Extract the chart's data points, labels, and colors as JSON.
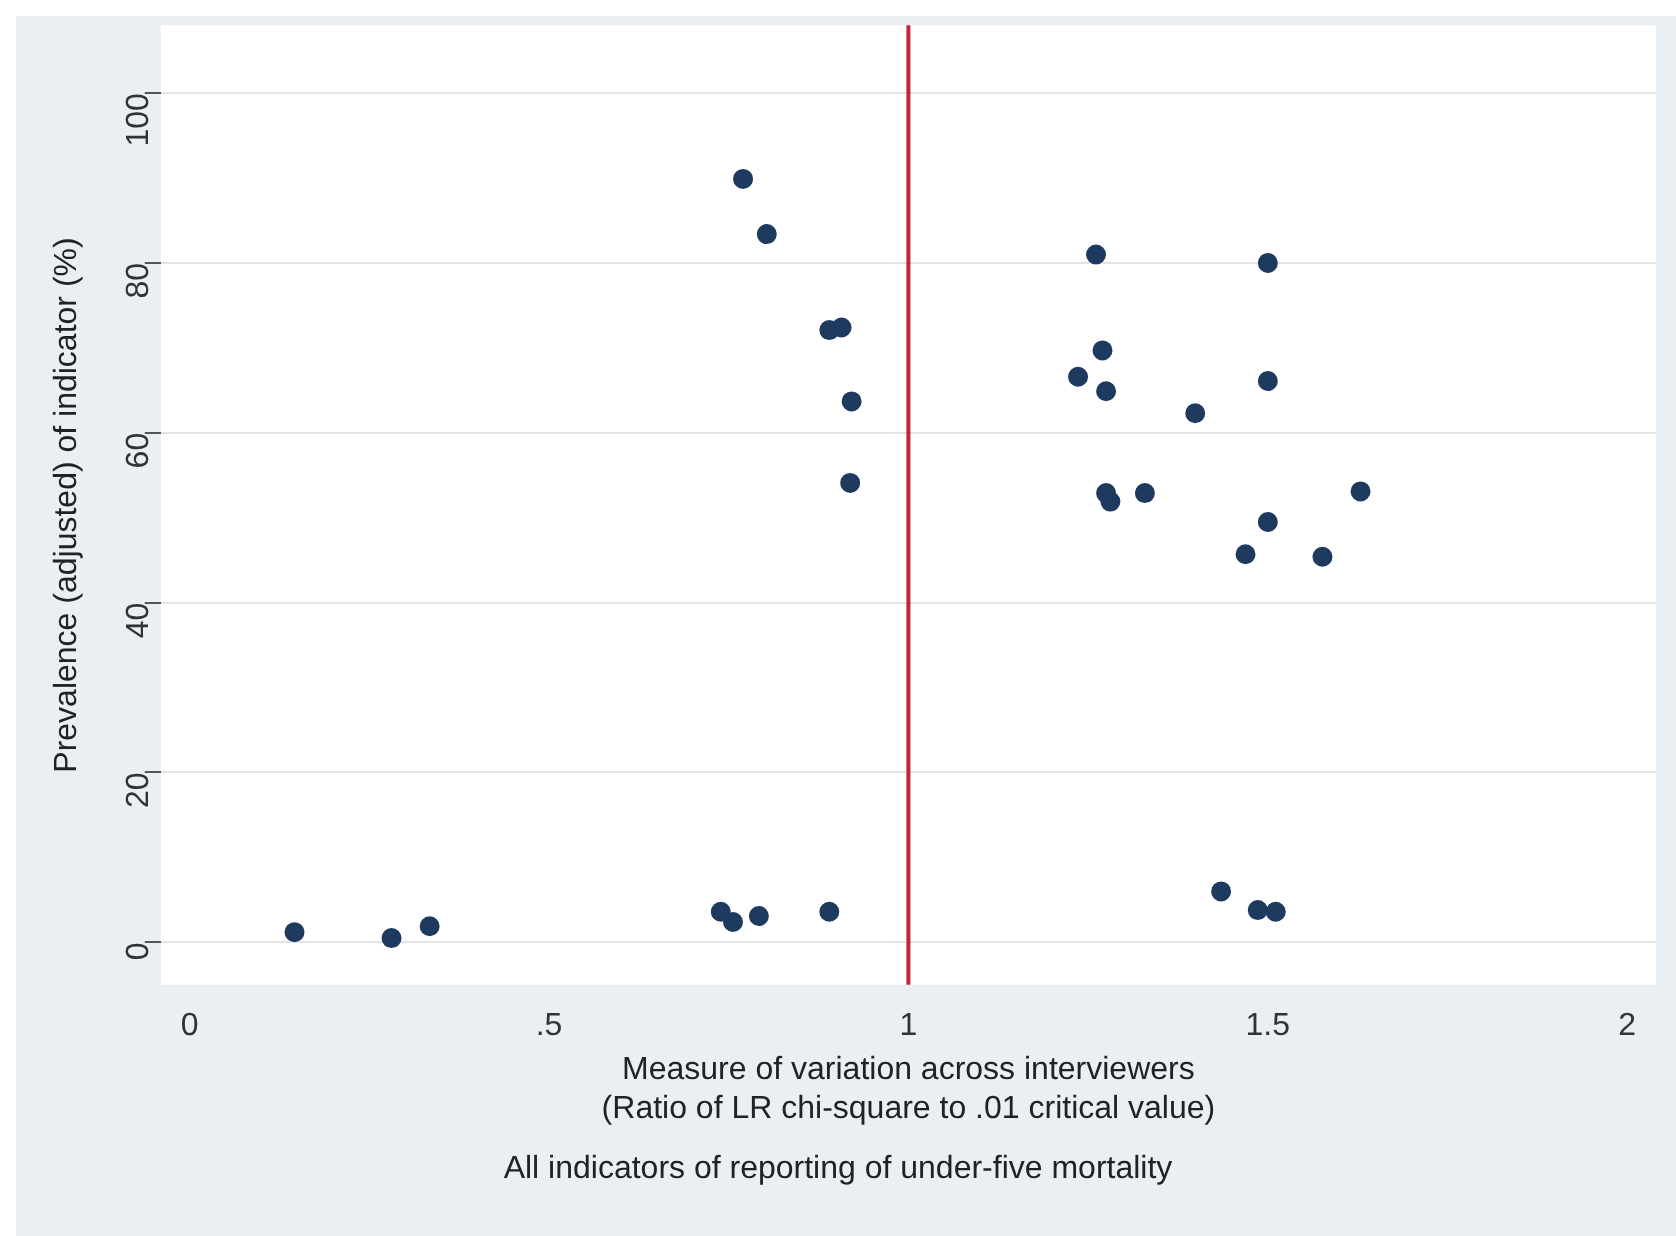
{
  "chart_data": {
    "type": "scatter",
    "xlabel": "Measure of variation across interviewers\n(Ratio of LR chi-square to .01 critical value)",
    "ylabel": "Prevalence (adjusted) of indicator (%)",
    "annotations": [
      "All indicators of reporting of under-five mortality"
    ],
    "series": [
      {
        "color": "#1f3a5f",
        "x": [
          0.146,
          0.281,
          0.334,
          0.739,
          0.756,
          0.792,
          0.89,
          0.77,
          0.803,
          0.89,
          0.907,
          0.921,
          0.919,
          1.261,
          1.27,
          1.236,
          1.275,
          1.399,
          1.5,
          1.5,
          1.275,
          1.281,
          1.329,
          1.629,
          1.5,
          1.469,
          1.576,
          1.435,
          1.486,
          1.511
        ],
        "values": [
          1.2,
          0.5,
          1.9,
          3.6,
          2.4,
          3.1,
          3.6,
          89.9,
          83.4,
          72.1,
          72.4,
          63.7,
          54.1,
          81.0,
          69.7,
          66.6,
          64.9,
          62.3,
          66.1,
          80.0,
          52.9,
          51.9,
          52.9,
          53.1,
          49.5,
          45.7,
          45.4,
          6.0,
          3.8,
          3.6
        ]
      }
    ],
    "marker": "circle",
    "xlim": [
      -0.04,
      2.04
    ],
    "xticks": [
      0,
      {
        "value": 0.5,
        "label": ".5"
      },
      1,
      1.5,
      2
    ],
    "ylim": [
      -5,
      108
    ],
    "yticks": [
      0,
      20,
      40,
      60,
      80,
      100
    ],
    "grid": "y",
    "legend": false,
    "ref_lines": [
      {
        "axis": "x",
        "value": 1,
        "color": "#c0243a"
      }
    ]
  }
}
